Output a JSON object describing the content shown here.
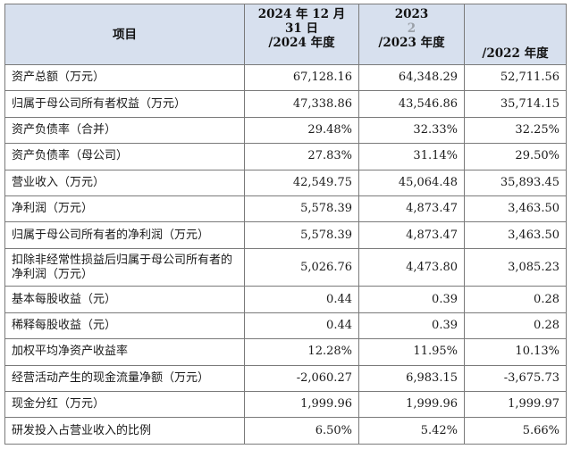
{
  "header": {
    "item": "项目",
    "col_2024": [
      "2024 年 12 月",
      "31 日",
      "/2024 年度"
    ],
    "col_2023": [
      "2023",
      "2",
      "/2023 年度"
    ],
    "col_2022": [
      "/2022 年度"
    ]
  },
  "rows": [
    {
      "label": "资产总额（万元）",
      "v2024": "67,128.16",
      "v2023": "64,348.29",
      "v2022": "52,711.56"
    },
    {
      "label": "归属于母公司所有者权益（万元）",
      "v2024": "47,338.86",
      "v2023": "43,546.86",
      "v2022": "35,714.15"
    },
    {
      "label": "资产负债率（合并）",
      "v2024": "29.48%",
      "v2023": "32.33%",
      "v2022": "32.25%"
    },
    {
      "label": "资产负债率（母公司）",
      "v2024": "27.83%",
      "v2023": "31.14%",
      "v2022": "29.50%"
    },
    {
      "label": "营业收入（万元）",
      "v2024": "42,549.75",
      "v2023": "45,064.48",
      "v2022": "35,893.45"
    },
    {
      "label": "净利润（万元）",
      "v2024": "5,578.39",
      "v2023": "4,873.47",
      "v2022": "3,463.50"
    },
    {
      "label": "归属于母公司所有者的净利润（万元）",
      "v2024": "5,578.39",
      "v2023": "4,873.47",
      "v2022": "3,463.50"
    },
    {
      "label": "扣除非经常性损益后归属于母公司所有者的净利润（万元）",
      "v2024": "5,026.76",
      "v2023": "4,473.80",
      "v2022": "3,085.23"
    },
    {
      "label": "基本每股收益（元）",
      "v2024": "0.44",
      "v2023": "0.39",
      "v2022": "0.28"
    },
    {
      "label": "稀释每股收益（元）",
      "v2024": "0.44",
      "v2023": "0.39",
      "v2022": "0.28"
    },
    {
      "label": "加权平均净资产收益率",
      "v2024": "12.28%",
      "v2023": "11.95%",
      "v2022": "10.13%"
    },
    {
      "label": "经营活动产生的现金流量净额（万元）",
      "v2024": "-2,060.27",
      "v2023": "6,983.15",
      "v2022": "-3,675.73"
    },
    {
      "label": "现金分红（万元）",
      "v2024": "1,999.96",
      "v2023": "1,999.96",
      "v2022": "1,999.97"
    },
    {
      "label": "研发投入占营业收入的比例",
      "v2024": "6.50%",
      "v2023": "5.42%",
      "v2022": "5.66%"
    }
  ]
}
